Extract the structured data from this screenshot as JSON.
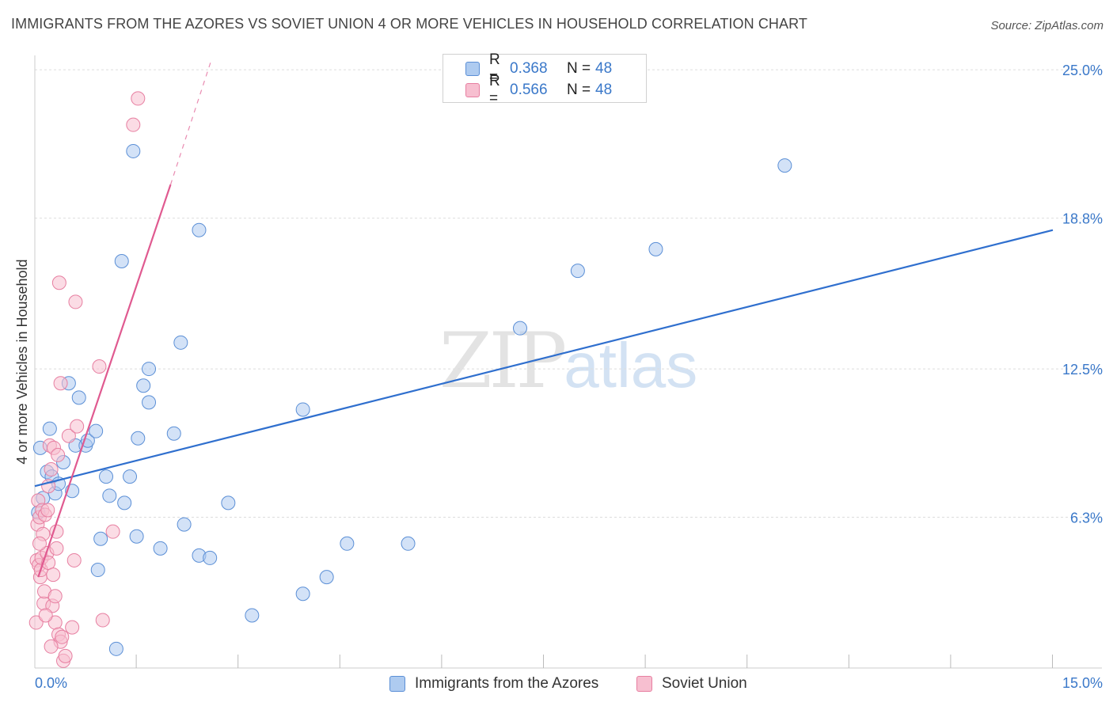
{
  "title": "IMMIGRANTS FROM THE AZORES VS SOVIET UNION 4 OR MORE VEHICLES IN HOUSEHOLD CORRELATION CHART",
  "source": "Source: ZipAtlas.com",
  "watermark": {
    "zip": "ZIP",
    "atlas": "atlas"
  },
  "colors": {
    "blue_fill": "#aecbf0",
    "blue_stroke": "#5b8fd6",
    "blue_line": "#2f6fce",
    "pink_fill": "#f7bfd0",
    "pink_stroke": "#e77fa1",
    "pink_line": "#e05a90",
    "tick_label": "#3a78c9",
    "grid": "#dddddd"
  },
  "legend_top": [
    {
      "r_label": "R =",
      "r_value": "0.368",
      "n_label": "N =",
      "n_value": "48"
    },
    {
      "r_label": "R =",
      "r_value": "0.566",
      "n_label": "N =",
      "n_value": "48"
    }
  ],
  "chart_data": {
    "type": "scatter",
    "title": "IMMIGRANTS FROM THE AZORES VS SOVIET UNION 4 OR MORE VEHICLES IN HOUSEHOLD CORRELATION CHART",
    "xlabel": "",
    "ylabel": "4 or more Vehicles in Household",
    "xlim": [
      0,
      15
    ],
    "ylim": [
      0,
      25.6
    ],
    "x_tick_labels": [
      "0.0%",
      "15.0%"
    ],
    "y_ticks": [
      6.3,
      12.5,
      18.8,
      25.0
    ],
    "y_tick_labels": [
      "6.3%",
      "12.5%",
      "18.8%",
      "25.0%"
    ],
    "x_minor_ticks": [
      1.5,
      3.0,
      4.5,
      6.0,
      7.5,
      9.0,
      10.5,
      12.0,
      13.5,
      15.0
    ],
    "grid": true,
    "legend_position": "bottom",
    "series": [
      {
        "name": "Immigrants from the Azores",
        "color": "#aecbf0",
        "trend": {
          "x0": 0.0,
          "y0": 7.6,
          "x1": 15.0,
          "y1": 18.3,
          "style": "solid"
        },
        "points": [
          [
            0.08,
            9.2
          ],
          [
            0.12,
            7.1
          ],
          [
            0.18,
            8.2
          ],
          [
            0.22,
            10.0
          ],
          [
            0.25,
            8.0
          ],
          [
            0.3,
            7.3
          ],
          [
            0.35,
            7.7
          ],
          [
            0.42,
            8.6
          ],
          [
            0.5,
            11.9
          ],
          [
            0.55,
            7.4
          ],
          [
            0.6,
            9.3
          ],
          [
            0.65,
            11.3
          ],
          [
            0.75,
            9.3
          ],
          [
            0.78,
            9.5
          ],
          [
            0.9,
            9.9
          ],
          [
            0.93,
            4.1
          ],
          [
            0.97,
            5.4
          ],
          [
            1.05,
            8.0
          ],
          [
            1.1,
            7.2
          ],
          [
            1.2,
            0.8
          ],
          [
            1.28,
            17.0
          ],
          [
            1.32,
            6.9
          ],
          [
            1.4,
            8.0
          ],
          [
            1.45,
            21.6
          ],
          [
            1.5,
            5.5
          ],
          [
            1.52,
            9.6
          ],
          [
            1.6,
            11.8
          ],
          [
            1.68,
            11.1
          ],
          [
            1.68,
            12.5
          ],
          [
            1.85,
            5.0
          ],
          [
            2.05,
            9.8
          ],
          [
            2.15,
            13.6
          ],
          [
            2.2,
            6.0
          ],
          [
            2.42,
            4.7
          ],
          [
            2.42,
            18.3
          ],
          [
            2.58,
            4.6
          ],
          [
            2.85,
            6.9
          ],
          [
            3.2,
            2.2
          ],
          [
            3.95,
            3.1
          ],
          [
            3.95,
            10.8
          ],
          [
            4.3,
            3.8
          ],
          [
            4.6,
            5.2
          ],
          [
            5.5,
            5.2
          ],
          [
            7.15,
            14.2
          ],
          [
            8.0,
            16.6
          ],
          [
            9.15,
            17.5
          ],
          [
            11.05,
            21.0
          ],
          [
            0.05,
            6.5
          ]
        ]
      },
      {
        "name": "Soviet Union",
        "color": "#f7bfd0",
        "trend": {
          "x0": 0.05,
          "y0": 3.8,
          "x1": 2.0,
          "y1": 20.2,
          "dash_x1": 2.6,
          "dash_y1": 25.4,
          "style": "solid+dashed"
        },
        "points": [
          [
            0.02,
            1.9
          ],
          [
            0.03,
            4.5
          ],
          [
            0.04,
            6.0
          ],
          [
            0.05,
            7.0
          ],
          [
            0.06,
            4.3
          ],
          [
            0.07,
            6.3
          ],
          [
            0.08,
            3.8
          ],
          [
            0.09,
            4.1
          ],
          [
            0.1,
            4.6
          ],
          [
            0.11,
            6.6
          ],
          [
            0.12,
            5.6
          ],
          [
            0.13,
            2.7
          ],
          [
            0.14,
            3.2
          ],
          [
            0.15,
            6.4
          ],
          [
            0.18,
            4.8
          ],
          [
            0.2,
            7.6
          ],
          [
            0.22,
            9.3
          ],
          [
            0.24,
            8.3
          ],
          [
            0.26,
            2.6
          ],
          [
            0.28,
            9.2
          ],
          [
            0.3,
            1.9
          ],
          [
            0.3,
            3.0
          ],
          [
            0.32,
            5.7
          ],
          [
            0.34,
            8.9
          ],
          [
            0.35,
            1.4
          ],
          [
            0.36,
            16.1
          ],
          [
            0.38,
            1.1
          ],
          [
            0.38,
            11.9
          ],
          [
            0.4,
            1.3
          ],
          [
            0.42,
            0.3
          ],
          [
            0.45,
            0.5
          ],
          [
            0.5,
            9.7
          ],
          [
            0.55,
            1.7
          ],
          [
            0.58,
            4.5
          ],
          [
            0.6,
            15.3
          ],
          [
            0.62,
            10.1
          ],
          [
            0.95,
            12.6
          ],
          [
            1.0,
            2.0
          ],
          [
            1.15,
            5.7
          ],
          [
            1.45,
            22.7
          ],
          [
            1.52,
            23.8
          ],
          [
            0.2,
            4.4
          ],
          [
            0.27,
            3.9
          ],
          [
            0.16,
            2.2
          ],
          [
            0.32,
            5.0
          ],
          [
            0.19,
            6.6
          ],
          [
            0.07,
            5.2
          ],
          [
            0.24,
            0.9
          ]
        ]
      }
    ]
  },
  "legend_bottom": [
    {
      "label": "Immigrants from the Azores"
    },
    {
      "label": "Soviet Union"
    }
  ]
}
